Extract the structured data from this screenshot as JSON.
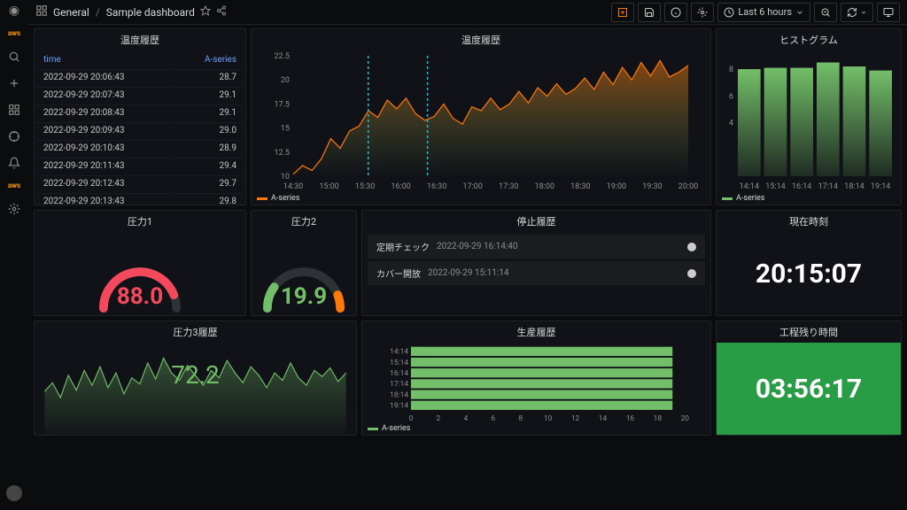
{
  "breadcrumb": {
    "root": "General",
    "title": "Sample dashboard"
  },
  "topbar": {
    "time_range": "Last 6 hours"
  },
  "sidebar_aws": "aws",
  "table_panel": {
    "title": "温度履歴",
    "col_time": "time",
    "col_series": "A-series",
    "rows": [
      {
        "t": "2022-09-29 20:06:43",
        "v": "28.7"
      },
      {
        "t": "2022-09-29 20:07:43",
        "v": "29.1"
      },
      {
        "t": "2022-09-29 20:08:43",
        "v": "29.1"
      },
      {
        "t": "2022-09-29 20:09:43",
        "v": "29.0"
      },
      {
        "t": "2022-09-29 20:10:43",
        "v": "28.9"
      },
      {
        "t": "2022-09-29 20:11:43",
        "v": "29.4"
      },
      {
        "t": "2022-09-29 20:12:43",
        "v": "29.7"
      },
      {
        "t": "2022-09-29 20:13:43",
        "v": "29.8"
      }
    ]
  },
  "temp_chart": {
    "title": "温度履歴",
    "series_name": "A-series",
    "series_color": "#ff780a",
    "fill_top": "#ff780a",
    "fill_bottom": "rgba(115,191,105,0.05)",
    "marker_color": "#1fbdd2",
    "ylim": [
      10,
      22.5
    ],
    "yticks": [
      10,
      12.5,
      15,
      17.5,
      20,
      22.5
    ],
    "xticks": [
      "14:30",
      "15:00",
      "15:30",
      "16:00",
      "16:30",
      "17:00",
      "17:30",
      "18:00",
      "18:30",
      "19:00",
      "19:30",
      "20:00"
    ],
    "markers_x": [
      0.19,
      0.34
    ],
    "data": [
      10.2,
      11.1,
      10.6,
      11.8,
      13.9,
      12.9,
      14.7,
      15.2,
      16.8,
      16.1,
      17.9,
      17.0,
      18.1,
      16.5,
      15.8,
      16.2,
      17.5,
      16.0,
      15.4,
      17.2,
      16.8,
      18.1,
      16.9,
      17.5,
      18.8,
      17.6,
      19.2,
      18.3,
      19.6,
      18.5,
      19.1,
      20.2,
      19.0,
      20.8,
      19.5,
      21.3,
      20.0,
      21.8,
      20.4,
      22.0,
      20.3,
      20.8,
      21.5
    ]
  },
  "histogram": {
    "title": "ヒストグラム",
    "series_name": "A-series",
    "bar_color": "#73bf69",
    "ylim": [
      0,
      8
    ],
    "yticks": [
      4,
      6,
      8
    ],
    "xticks": [
      "14:14",
      "15:14",
      "16:14",
      "17:14",
      "18:14",
      "19:14"
    ],
    "values": [
      8.0,
      8.1,
      8.1,
      8.5,
      8.2,
      7.9
    ]
  },
  "gauge1": {
    "title": "圧力1",
    "value": "88.0",
    "value_num": 88,
    "color": "#f2495c",
    "track": "#2c3235"
  },
  "gauge2": {
    "title": "圧力2",
    "value": "19.9",
    "value_num": 19.9,
    "color": "#73bf69",
    "track": "#2c3235",
    "accent": "#ff780a"
  },
  "events": {
    "title": "停止履歴",
    "items": [
      {
        "label": "定期チェック",
        "ts": "2022-09-29 16:14:40"
      },
      {
        "label": "カバー開放",
        "ts": "2022-09-29 15:11:14"
      }
    ]
  },
  "clock": {
    "title": "現在時刻",
    "value": "20:15:07",
    "color": "#ffffff"
  },
  "spark": {
    "title": "圧力3履歴",
    "value": "72.2",
    "color": "#73bf69",
    "data": [
      35,
      42,
      30,
      48,
      36,
      52,
      40,
      55,
      38,
      50,
      33,
      46,
      41,
      58,
      45,
      62,
      50,
      44,
      56,
      48,
      40,
      52,
      46,
      60,
      50,
      42,
      55,
      48,
      38,
      50,
      44,
      58,
      46,
      40,
      52,
      47,
      54,
      43,
      50
    ]
  },
  "hbar": {
    "title": "生産履歴",
    "series_name": "A-series",
    "bar_color": "#73bf69",
    "xticks": [
      "0",
      "2",
      "4",
      "6",
      "8",
      "10",
      "12",
      "14",
      "16",
      "18",
      "20"
    ],
    "yticks": [
      "14:14",
      "15:14",
      "16:14",
      "17:14",
      "18:14",
      "19:14"
    ],
    "values": [
      21,
      21,
      21,
      21,
      21,
      21
    ]
  },
  "countdown": {
    "title": "工程残り時間",
    "value": "03:56:17",
    "bg": "#299c46",
    "color": "#ffffff"
  }
}
